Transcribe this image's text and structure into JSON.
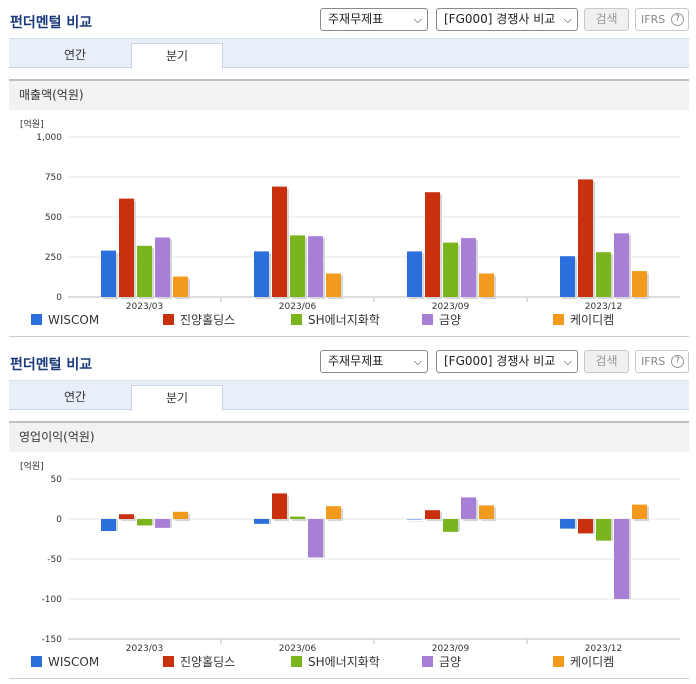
{
  "panels": [
    {
      "title": "펀더멘털 비교",
      "select_statement": "주재무제표",
      "select_compare": "[FG000] 경쟁사 비교",
      "search_label": "검색",
      "ifrs_label": "IFRS",
      "ifrs_help": "?",
      "tabs": [
        "연간",
        "분기"
      ],
      "section_title": "매출액(억원)"
    },
    {
      "title": "펀더멘털 비교",
      "select_statement": "주재무제표",
      "select_compare": "[FG000] 경쟁사 비교",
      "search_label": "검색",
      "ifrs_label": "IFRS",
      "ifrs_help": "?",
      "tabs": [
        "연간",
        "분기"
      ],
      "section_title": "영업이익(억원)"
    }
  ],
  "colors": {
    "WISCOM": "#2b6fdc",
    "진양홀딩스": "#c9300e",
    "SH에너지화학": "#7ab51d",
    "금양": "#a77fd6",
    "케이디켐": "#f39a1e"
  },
  "chart_data": [
    {
      "type": "bar",
      "unit_label": "[억원]",
      "categories": [
        "2023/03",
        "2023/06",
        "2023/09",
        "2023/12"
      ],
      "ylim": [
        0,
        1000
      ],
      "yticks": [
        0,
        250,
        500,
        750,
        1000
      ],
      "ytick_labels": [
        "0",
        "250",
        "500",
        "750",
        "1,000"
      ],
      "grid": true,
      "legend": "bottom",
      "series": [
        {
          "name": "WISCOM",
          "values": [
            290,
            285,
            285,
            255
          ]
        },
        {
          "name": "진양홀딩스",
          "values": [
            615,
            690,
            655,
            735
          ]
        },
        {
          "name": "SH에너지화학",
          "values": [
            320,
            385,
            340,
            280
          ]
        },
        {
          "name": "금양",
          "values": [
            372,
            380,
            368,
            398
          ]
        },
        {
          "name": "케이디켐",
          "values": [
            128,
            147,
            147,
            162
          ]
        }
      ]
    },
    {
      "type": "bar",
      "unit_label": "[억원]",
      "categories": [
        "2023/03",
        "2023/06",
        "2023/09",
        "2023/12"
      ],
      "ylim": [
        -150,
        50
      ],
      "yticks": [
        -150,
        -100,
        -50,
        0,
        50
      ],
      "ytick_labels": [
        "-150",
        "-100",
        "-50",
        "0",
        "50"
      ],
      "grid": true,
      "legend": "bottom",
      "series": [
        {
          "name": "WISCOM",
          "values": [
            -15,
            -6,
            0,
            -12
          ]
        },
        {
          "name": "진양홀딩스",
          "values": [
            6,
            32,
            11,
            -18
          ]
        },
        {
          "name": "SH에너지화학",
          "values": [
            -8,
            3,
            -16,
            -27
          ]
        },
        {
          "name": "금양",
          "values": [
            -11,
            -48,
            27,
            -100
          ]
        },
        {
          "name": "케이디켐",
          "values": [
            9,
            16,
            17,
            18
          ]
        }
      ]
    }
  ]
}
